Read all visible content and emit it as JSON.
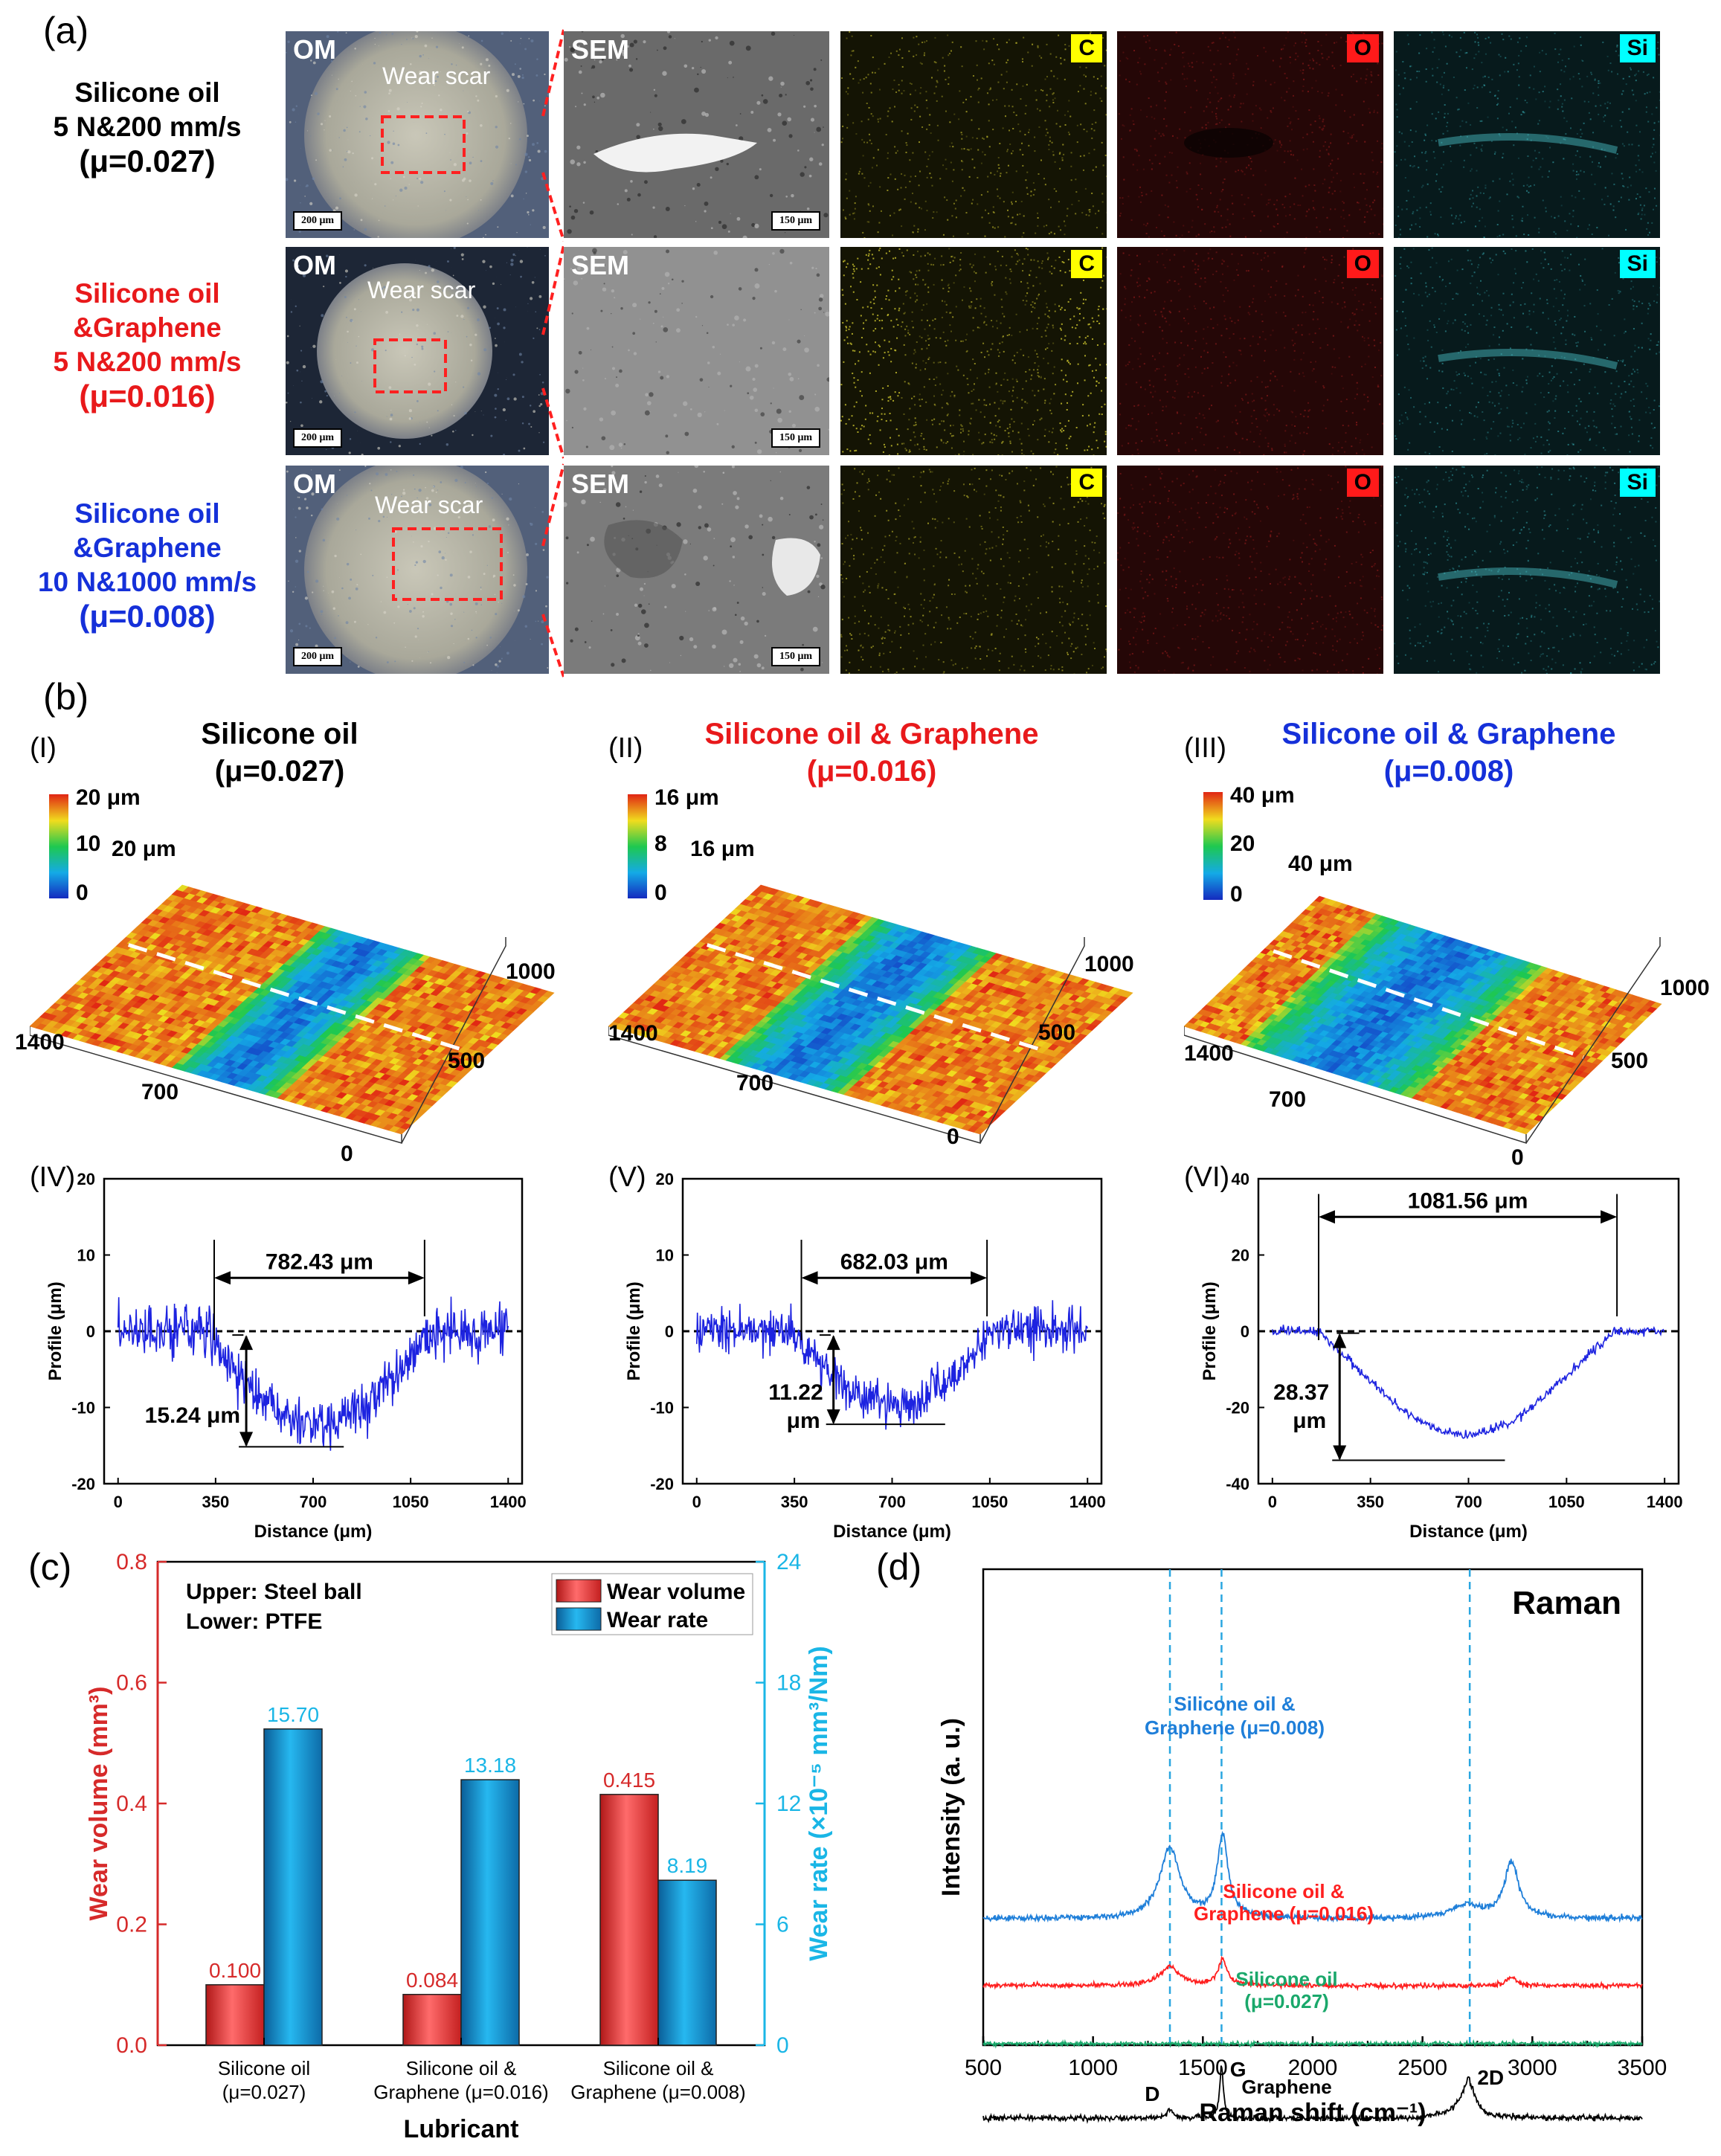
{
  "panel_a": {
    "letter": "(a)",
    "rows": [
      {
        "lines": [
          "Silicone oil",
          "5 N&200 mm/s",
          "(μ=0.027)"
        ],
        "color": "#000000"
      },
      {
        "lines": [
          "Silicone oil",
          "&Graphene",
          "5 N&200 mm/s",
          "(μ=0.016)"
        ],
        "color": "#e8191b"
      },
      {
        "lines": [
          "Silicone oil",
          "&Graphene",
          "10 N&1000 mm/s",
          "(μ=0.008)"
        ],
        "color": "#1530d9"
      }
    ],
    "om_label": "OM",
    "sem_label": "SEM",
    "wear_scar": "Wear scar",
    "scale_om": "200 μm",
    "scale_sem": "150 μm",
    "elements": [
      {
        "name": "C",
        "bg": "#ffff00",
        "fg": "#000000"
      },
      {
        "name": "O",
        "bg": "#ff1a1a",
        "fg": "#000000"
      },
      {
        "name": "Si",
        "bg": "#00ffff",
        "fg": "#000000"
      }
    ]
  },
  "panel_b": {
    "letter": "(b)",
    "cols": [
      {
        "roman": "(I)",
        "title": "Silicone oil",
        "mu": "(μ=0.027)",
        "color": "#000000",
        "cbar_max": "20 μm",
        "cbar_mid": "10",
        "cbar_min": "0",
        "z_label": "20 μm",
        "axis_ticks": [
          "1400",
          "700",
          "0",
          "500",
          "1000"
        ]
      },
      {
        "roman": "(II)",
        "title": "Silicone oil & Graphene",
        "mu": "(μ=0.016)",
        "color": "#e8191b",
        "cbar_max": "16 μm",
        "cbar_mid": "8",
        "cbar_min": "0",
        "z_label": "16 μm",
        "axis_ticks": [
          "1400",
          "700",
          "0",
          "500",
          "1000"
        ]
      },
      {
        "roman": "(III)",
        "title": "Silicone oil & Graphene",
        "mu": "(μ=0.008)",
        "color": "#1530d9",
        "cbar_max": "40 μm",
        "cbar_mid": "20",
        "cbar_min": "0",
        "z_label": "40 μm",
        "axis_ticks": [
          "1400",
          "700",
          "0",
          "500",
          "1000"
        ]
      }
    ],
    "profiles": [
      {
        "roman": "(IV)",
        "yticks": [
          "20",
          "10",
          "0",
          "-10",
          "-20"
        ],
        "xticks": [
          "0",
          "350",
          "700",
          "1050",
          "1400"
        ],
        "width_label": "782.43 μm",
        "depth_label": "15.24 μm",
        "ylabel": "Profile (μm)",
        "xlabel": "Distance (μm)"
      },
      {
        "roman": "(V)",
        "yticks": [
          "20",
          "10",
          "0",
          "-10",
          "-20"
        ],
        "xticks": [
          "0",
          "350",
          "700",
          "1050",
          "1400"
        ],
        "width_label": "682.03 μm",
        "depth_label1": "11.22",
        "depth_label2": "μm",
        "ylabel": "Profile (μm)",
        "xlabel": "Distance (μm)"
      },
      {
        "roman": "(VI)",
        "yticks": [
          "40",
          "20",
          "0",
          "-20",
          "-40"
        ],
        "xticks": [
          "0",
          "350",
          "700",
          "1050",
          "1400"
        ],
        "width_label": "1081.56 μm",
        "depth_label1": "28.37",
        "depth_label2": "μm",
        "ylabel": "Profile (μm)",
        "xlabel": "Distance (μm)"
      }
    ]
  },
  "panel_c": {
    "letter": "(c)",
    "upper": "Upper:  Steel ball",
    "lower": "Lower:  PTFE",
    "legend_volume": "Wear volume",
    "legend_rate": "Wear rate",
    "ylabel_left": "Wear volume (mm³)",
    "ylabel_right": "Wear rate (×10⁻⁵ mm³/Nm)",
    "xlabel": "Lubricant",
    "left_ticks": [
      "0.0",
      "0.2",
      "0.4",
      "0.6",
      "0.8"
    ],
    "right_ticks": [
      "0",
      "6",
      "12",
      "18",
      "24"
    ],
    "categories": [
      [
        "Silicone oil",
        "(μ=0.027)"
      ],
      [
        "Silicone oil &",
        "Graphene (μ=0.016)"
      ],
      [
        "Silicone oil &",
        "Graphene (μ=0.008)"
      ]
    ],
    "volume_labels": [
      "0.100",
      "0.084",
      "0.415"
    ],
    "rate_labels": [
      "15.70",
      "13.18",
      "8.19"
    ]
  },
  "panel_d": {
    "letter": "(d)",
    "title": "Raman",
    "ylabel": "Intensity (a. u.)",
    "xlabel": "Raman shift (cm⁻¹)",
    "xticks": [
      "500",
      "1000",
      "1500",
      "2000",
      "2500",
      "3000",
      "3500"
    ],
    "labels": {
      "s008a": "Silicone oil &",
      "s008b": "Graphene (μ=0.008)",
      "s016a": "Silicone oil &",
      "s016b": "Graphene (μ=0.016)",
      "s027a": "Silicone oil",
      "s027b": "(μ=0.027)",
      "graphene": "Graphene",
      "D": "D",
      "G": "G",
      "2D": "2D"
    }
  },
  "chart_data": [
    {
      "type": "line",
      "title": "(IV) Silicone oil (μ=0.027) cross-section profile",
      "xlabel": "Distance (μm)",
      "ylabel": "Profile (μm)",
      "xlim": [
        -50,
        1450
      ],
      "ylim": [
        -20,
        20
      ],
      "wear_width_um": 782.43,
      "wear_depth_um": 15.24
    },
    {
      "type": "line",
      "title": "(V) Silicone oil & Graphene (μ=0.016) cross-section profile",
      "xlabel": "Distance (μm)",
      "ylabel": "Profile (μm)",
      "xlim": [
        -50,
        1450
      ],
      "ylim": [
        -20,
        20
      ],
      "wear_width_um": 682.03,
      "wear_depth_um": 11.22
    },
    {
      "type": "line",
      "title": "(VI) Silicone oil & Graphene (μ=0.008) cross-section profile",
      "xlabel": "Distance (μm)",
      "ylabel": "Profile (μm)",
      "xlim": [
        -50,
        1450
      ],
      "ylim": [
        -40,
        40
      ],
      "wear_width_um": 1081.56,
      "wear_depth_um": 28.37
    },
    {
      "type": "bar",
      "title": "Wear volume and wear rate",
      "categories": [
        "Silicone oil (μ=0.027)",
        "Silicone oil & Graphene (μ=0.016)",
        "Silicone oil & Graphene (μ=0.008)"
      ],
      "series": [
        {
          "name": "Wear volume",
          "axis": "left",
          "unit": "mm³",
          "values": [
            0.1,
            0.084,
            0.415
          ]
        },
        {
          "name": "Wear rate",
          "axis": "right",
          "unit": "×10⁻⁵ mm³/Nm",
          "values": [
            15.7,
            13.18,
            8.19
          ]
        }
      ],
      "ylim_left": [
        0,
        0.8
      ],
      "ylim_right": [
        0,
        24
      ],
      "xlabel": "Lubricant",
      "ylabel": "Wear volume (mm³)",
      "ylabel_right": "Wear rate (×10⁻⁵ mm³/Nm)"
    },
    {
      "type": "line",
      "title": "Raman",
      "xlabel": "Raman shift (cm⁻¹)",
      "ylabel": "Intensity (a. u.)",
      "xlim": [
        500,
        3500
      ],
      "reference_lines": [
        1350,
        1585,
        2715
      ],
      "series": [
        {
          "name": "Silicone oil & Graphene (μ=0.008)",
          "color": "#1f7fd9",
          "peaks": [
            1350,
            1590,
            2905
          ]
        },
        {
          "name": "Silicone oil & Graphene (μ=0.016)",
          "color": "#ff1f1f",
          "peaks": [
            1350,
            1590,
            2905
          ]
        },
        {
          "name": "Silicone oil (μ=0.027)",
          "color": "#1aa86b",
          "peaks": []
        },
        {
          "name": "Graphene",
          "color": "#000000",
          "peaks": [
            1350,
            1585,
            2715
          ]
        }
      ]
    }
  ]
}
